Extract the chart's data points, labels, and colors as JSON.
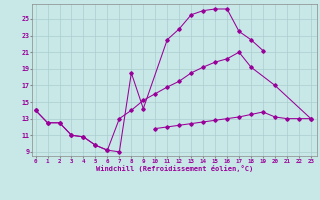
{
  "xlabel": "Windchill (Refroidissement éolien,°C)",
  "bg_color": "#c8e8e8",
  "grid_color": "#aacece",
  "line_color": "#990099",
  "yticks": [
    9,
    11,
    13,
    15,
    17,
    19,
    21,
    23,
    25
  ],
  "xticks": [
    0,
    1,
    2,
    3,
    4,
    5,
    6,
    7,
    8,
    9,
    10,
    11,
    12,
    13,
    14,
    15,
    16,
    17,
    18,
    19,
    20,
    21,
    22,
    23
  ],
  "xlim": [
    -0.3,
    23.5
  ],
  "ylim": [
    8.5,
    26.8
  ],
  "s1_x": [
    0,
    1,
    2,
    3,
    4,
    5,
    6,
    7,
    8,
    9,
    11,
    12,
    13,
    14,
    15,
    16,
    17,
    18,
    19
  ],
  "s1_y": [
    14.0,
    12.5,
    12.5,
    11.0,
    10.8,
    9.8,
    9.2,
    9.0,
    18.5,
    14.2,
    22.5,
    23.8,
    25.5,
    26.0,
    26.2,
    26.2,
    23.5,
    22.5,
    21.2
  ],
  "s2_x": [
    0,
    1,
    2,
    3,
    4,
    5,
    6,
    7,
    8,
    9,
    10,
    11,
    12,
    13,
    14,
    15,
    16,
    17,
    18,
    20,
    23
  ],
  "s2_y": [
    14.0,
    12.5,
    12.5,
    11.0,
    10.8,
    9.8,
    9.2,
    13.0,
    14.0,
    15.2,
    16.0,
    16.8,
    17.5,
    18.5,
    19.2,
    19.8,
    20.2,
    21.0,
    19.2,
    17.0,
    13.0
  ],
  "s3_x": [
    10,
    11,
    12,
    13,
    14,
    15,
    16,
    17,
    18,
    19,
    20,
    21,
    22,
    23
  ],
  "s3_y": [
    11.8,
    12.0,
    12.2,
    12.4,
    12.6,
    12.8,
    13.0,
    13.2,
    13.5,
    13.8,
    13.2,
    13.0,
    13.0,
    13.0
  ]
}
